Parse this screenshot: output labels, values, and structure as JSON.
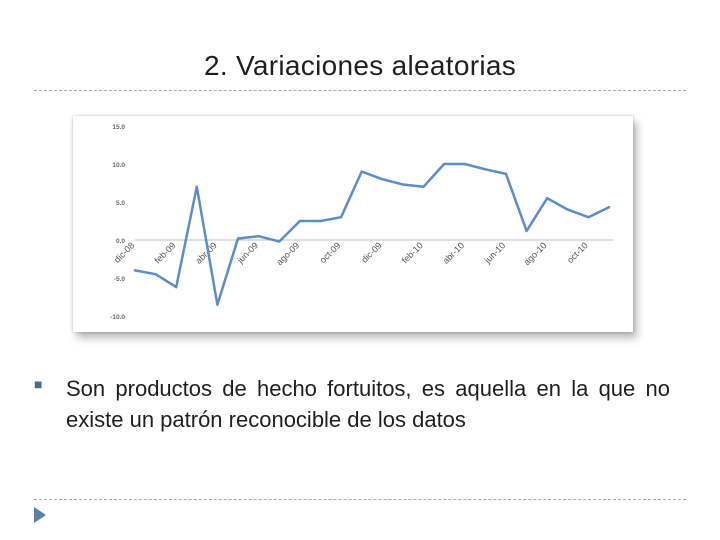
{
  "slide": {
    "title": "2. Variaciones aleatorias",
    "bullet_icon": "square-bullet-icon",
    "body_text": "Son productos de hecho fortuitos, es aquella en la que no existe un patrón reconocible de los datos",
    "nav_icon": "play-arrow-icon"
  },
  "chart_data": {
    "type": "line",
    "title": "",
    "xlabel": "",
    "ylabel": "",
    "ylim": [
      -10,
      15
    ],
    "yticks": [
      -10,
      -5,
      0,
      5,
      10,
      15
    ],
    "ytick_labels": [
      "-10.0",
      "-5.0",
      "0.0",
      "5.0",
      "10.0",
      "15.0"
    ],
    "x_tick_labels": [
      "dic-08",
      "feb-09",
      "abr-09",
      "jun-09",
      "ago-09",
      "oct-09",
      "dic-09",
      "feb-10",
      "abr-10",
      "jun-10",
      "ago-10",
      "oct-10"
    ],
    "categories": [
      "dic-08",
      "ene-09",
      "feb-09",
      "mar-09",
      "abr-09",
      "may-09",
      "jun-09",
      "jul-09",
      "ago-09",
      "sep-09",
      "oct-09",
      "nov-09",
      "dic-09",
      "ene-10",
      "feb-10",
      "mar-10",
      "abr-10",
      "may-10",
      "jun-10",
      "jul-10",
      "ago-10",
      "sep-10",
      "oct-10",
      "nov-10"
    ],
    "series": [
      {
        "values": [
          -4.0,
          -4.5,
          -6.2,
          7.0,
          -8.5,
          0.2,
          0.5,
          -0.2,
          2.5,
          2.5,
          3.0,
          9.0,
          8.0,
          7.3,
          7.0,
          10.0,
          10.0,
          9.3,
          8.7,
          1.2,
          5.5,
          4.0,
          3.0,
          4.3
        ],
        "color": "#5b8ccc"
      }
    ],
    "grid": false,
    "legend": "none"
  }
}
